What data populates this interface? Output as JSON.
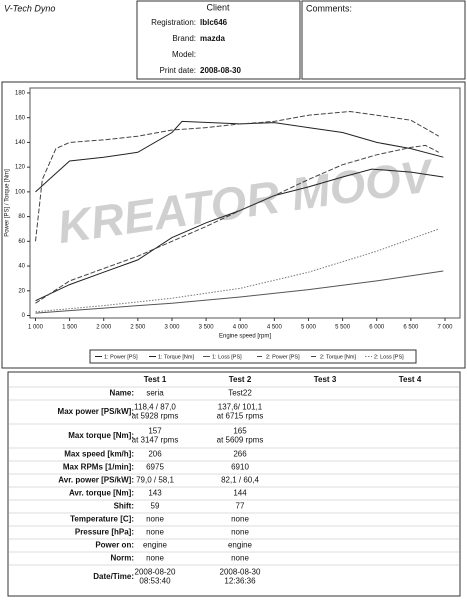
{
  "header": {
    "app_title": "V-Tech Dyno",
    "client_title": "Client",
    "comments_label": "Comments:",
    "fields": [
      {
        "label": "Registration:",
        "value": "lblc646"
      },
      {
        "label": "Brand:",
        "value": "mazda"
      },
      {
        "label": "Model:"
      },
      {
        "label": "Print date:",
        "value": "2008-08-30"
      }
    ]
  },
  "chart_data": {
    "type": "line",
    "watermark": "KREATOR MOOV",
    "xlabel": "Engine speed [rpm]",
    "ylabel": "Power [PS] / Torque [Nm]",
    "xlim": [
      920,
      7220
    ],
    "ylim": [
      -2,
      184
    ],
    "xticks": [
      {
        "value": 1000,
        "label": "1 000"
      },
      {
        "value": 1500,
        "label": "1 500"
      },
      {
        "value": 2000,
        "label": "2 000"
      },
      {
        "value": 2500,
        "label": "2 500"
      },
      {
        "value": 3000,
        "label": "3 000"
      },
      {
        "value": 3500,
        "label": "3 500"
      },
      {
        "value": 4000,
        "label": "4 000"
      },
      {
        "value": 4500,
        "label": "4 500"
      },
      {
        "value": 5000,
        "label": "5 000"
      },
      {
        "value": 5500,
        "label": "5 500"
      },
      {
        "value": 6000,
        "label": "6 000"
      },
      {
        "value": 6500,
        "label": "6 500"
      },
      {
        "value": 7000,
        "label": "7 000"
      }
    ],
    "yticks": [
      0,
      20,
      40,
      60,
      80,
      100,
      120,
      140,
      160,
      180
    ],
    "grid": false,
    "series": [
      {
        "name": "1: Power [PS]",
        "color": "#222222",
        "dash": "solid",
        "x": [
          1000,
          1500,
          2000,
          2500,
          3000,
          3500,
          4000,
          4500,
          5000,
          5500,
          5928,
          6500,
          6975
        ],
        "values": [
          12,
          25,
          35,
          45,
          63,
          75,
          85,
          97,
          104,
          112,
          118.4,
          116,
          112
        ]
      },
      {
        "name": "1: Torque [Nm]",
        "color": "#222222",
        "dash": "solid",
        "x": [
          1000,
          1200,
          1500,
          2000,
          2500,
          3000,
          3147,
          4000,
          4500,
          5000,
          5500,
          6000,
          6500,
          6975
        ],
        "values": [
          100,
          110,
          125,
          128,
          132,
          148,
          157,
          155,
          156,
          152,
          148,
          140,
          135,
          128
        ]
      },
      {
        "name": "1: Loss [PS]",
        "color": "#555555",
        "dash": "solid",
        "x": [
          1000,
          2000,
          3000,
          4000,
          5000,
          6000,
          6975
        ],
        "values": [
          2,
          6,
          10,
          15,
          21,
          28,
          36
        ]
      },
      {
        "name": "2: Power [PS]",
        "color": "#444444",
        "dash": "dashed",
        "x": [
          1000,
          1500,
          2000,
          2500,
          3000,
          3500,
          4000,
          4500,
          5000,
          5500,
          6000,
          6500,
          6715,
          6910
        ],
        "values": [
          10,
          28,
          38,
          48,
          60,
          72,
          85,
          97,
          110,
          122,
          130,
          136,
          137.6,
          132
        ]
      },
      {
        "name": "2: Torque [Nm]",
        "color": "#444444",
        "dash": "dashed",
        "x": [
          1000,
          1100,
          1300,
          1500,
          2000,
          2500,
          3000,
          3500,
          4000,
          4500,
          5000,
          5609,
          6000,
          6500,
          6910
        ],
        "values": [
          60,
          110,
          135,
          140,
          142,
          145,
          150,
          152,
          155,
          157,
          162,
          165,
          162,
          158,
          145
        ]
      },
      {
        "name": "2: Loss [PS]",
        "color": "#777777",
        "dash": "dotted",
        "x": [
          1000,
          2000,
          3000,
          4000,
          5000,
          6000,
          6910
        ],
        "values": [
          3,
          8,
          14,
          22,
          35,
          52,
          70
        ]
      }
    ]
  },
  "table": {
    "columns": [
      "Test 1",
      "Test 2",
      "Test 3",
      "Test 4"
    ],
    "rows": [
      {
        "label": "Name:",
        "cells": [
          [
            "seria"
          ],
          [
            "Test22"
          ]
        ]
      },
      {
        "label": "Max power [PS/kW]:",
        "cells": [
          [
            "118,4 / 87,0",
            "at 5928 rpms"
          ],
          [
            "137,6/ 101,1",
            "at 6715 rpms"
          ]
        ]
      },
      {
        "label": "Max torque [Nm]:",
        "cells": [
          [
            "157",
            "at 3147 rpms"
          ],
          [
            "165",
            "at 5609 rpms"
          ]
        ]
      },
      {
        "label": "Max speed [km/h]:",
        "cells": [
          [
            "206"
          ],
          [
            "266"
          ]
        ]
      },
      {
        "label": "Max RPMs [1/min]:",
        "cells": [
          [
            "6975"
          ],
          [
            "6910"
          ]
        ]
      },
      {
        "label": "Avr. power [PS/kW]:",
        "cells": [
          [
            "79,0 / 58,1"
          ],
          [
            "82,1 / 60,4"
          ]
        ]
      },
      {
        "label": "Avr. torque [Nm]:",
        "cells": [
          [
            "143"
          ],
          [
            "144"
          ]
        ]
      },
      {
        "label": "Shift:",
        "cells": [
          [
            "59"
          ],
          [
            "77"
          ]
        ]
      },
      {
        "label": "Temperature [C]:",
        "cells": [
          [
            "none"
          ],
          [
            "none"
          ]
        ]
      },
      {
        "label": "Pressure [hPa]:",
        "cells": [
          [
            "none"
          ],
          [
            "none"
          ]
        ]
      },
      {
        "label": "Power on:",
        "cells": [
          [
            "engine"
          ],
          [
            "engine"
          ]
        ]
      },
      {
        "label": "Norm:",
        "cells": [
          [
            "none"
          ],
          [
            "none"
          ]
        ]
      },
      {
        "label": "Date/Time:",
        "cells": [
          [
            "2008-08-20",
            "08:53:40"
          ],
          [
            "2008-08-30",
            "12:36:36"
          ]
        ]
      }
    ]
  }
}
